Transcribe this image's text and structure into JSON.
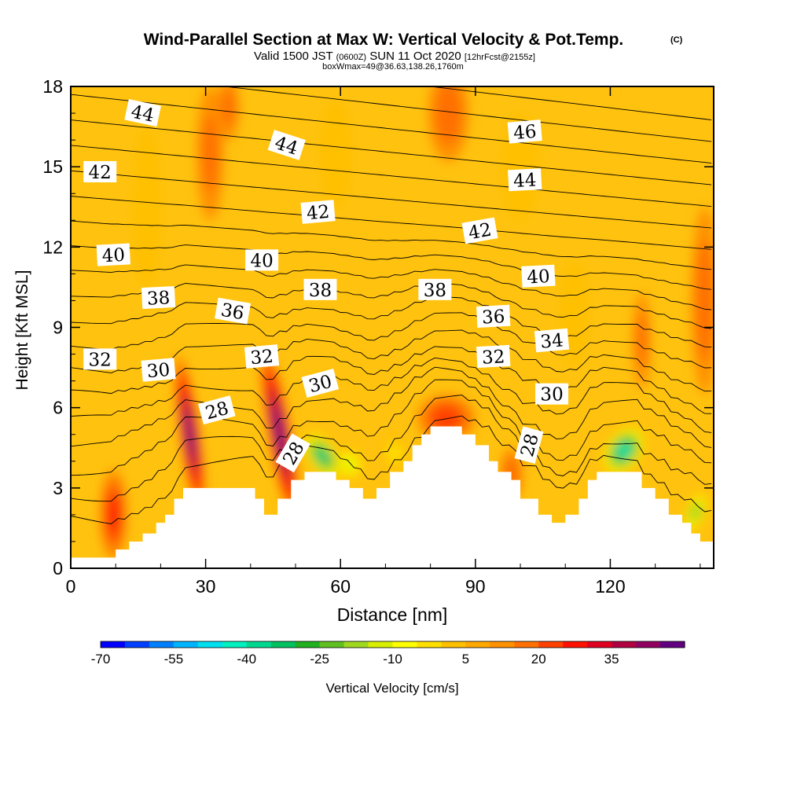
{
  "chart_data": {
    "type": "heatmap",
    "title": "Wind-Parallel Section at Max W: Vertical Velocity & Pot.Temp.",
    "title_mark": "(C)",
    "subtitle": {
      "valid": "Valid 1500 JST",
      "utc": "(0600Z)",
      "date": "SUN 11 Oct 2020",
      "fcst": "[12hrFcst@2155z]",
      "box": "boxWmax=49@36.63,138.26,1760m"
    },
    "xlabel": "Distance [nm]",
    "ylabel": "Height [Kft MSL]",
    "xlim": [
      0,
      143
    ],
    "ylim": [
      0,
      18
    ],
    "x_ticks": [
      0,
      30,
      60,
      90,
      120
    ],
    "y_ticks": [
      0,
      3,
      6,
      9,
      12,
      15,
      18
    ],
    "colorbar": {
      "label": "Vertical Velocity [cm/s]",
      "tick_labels": [
        "-70",
        "-55",
        "-40",
        "-25",
        "-10",
        "5",
        "20",
        "35"
      ],
      "colors": [
        "#0000ff",
        "#0040ff",
        "#0080ff",
        "#00b4ff",
        "#00e0f0",
        "#00f0c0",
        "#00d890",
        "#00c060",
        "#20b020",
        "#60c020",
        "#a0d820",
        "#d8f000",
        "#ffff00",
        "#ffe000",
        "#ffc000",
        "#ffa800",
        "#ff9000",
        "#ff7000",
        "#ff4000",
        "#ff1000",
        "#e00020",
        "#b00040",
        "#900060",
        "#600080"
      ]
    },
    "terrain_kft": [
      [
        0,
        0.4
      ],
      [
        10,
        0.4
      ],
      [
        10,
        0.7
      ],
      [
        13,
        0.7
      ],
      [
        13,
        1.0
      ],
      [
        16,
        1.0
      ],
      [
        16,
        1.3
      ],
      [
        19,
        1.3
      ],
      [
        19,
        1.7
      ],
      [
        21,
        1.7
      ],
      [
        21,
        2.0
      ],
      [
        23,
        2.0
      ],
      [
        23,
        2.6
      ],
      [
        25,
        2.6
      ],
      [
        25,
        3.0
      ],
      [
        41,
        3.0
      ],
      [
        41,
        2.6
      ],
      [
        43,
        2.6
      ],
      [
        43,
        2.0
      ],
      [
        46,
        2.0
      ],
      [
        46,
        2.6
      ],
      [
        49,
        2.6
      ],
      [
        49,
        3.3
      ],
      [
        52,
        3.3
      ],
      [
        52,
        3.6
      ],
      [
        59,
        3.6
      ],
      [
        59,
        3.3
      ],
      [
        62,
        3.3
      ],
      [
        62,
        3.0
      ],
      [
        65,
        3.0
      ],
      [
        65,
        2.6
      ],
      [
        68,
        2.6
      ],
      [
        68,
        3.0
      ],
      [
        71,
        3.0
      ],
      [
        71,
        3.6
      ],
      [
        74,
        3.6
      ],
      [
        74,
        4.0
      ],
      [
        76,
        4.0
      ],
      [
        76,
        4.6
      ],
      [
        78,
        4.6
      ],
      [
        78,
        5.0
      ],
      [
        80,
        5.0
      ],
      [
        80,
        5.3
      ],
      [
        87,
        5.3
      ],
      [
        87,
        5.0
      ],
      [
        90,
        5.0
      ],
      [
        90,
        4.6
      ],
      [
        93,
        4.6
      ],
      [
        93,
        4.0
      ],
      [
        95,
        4.0
      ],
      [
        95,
        3.6
      ],
      [
        98,
        3.6
      ],
      [
        98,
        3.3
      ],
      [
        100,
        3.3
      ],
      [
        100,
        2.6
      ],
      [
        104,
        2.6
      ],
      [
        104,
        2.0
      ],
      [
        107,
        2.0
      ],
      [
        107,
        1.7
      ],
      [
        110,
        1.7
      ],
      [
        110,
        2.0
      ],
      [
        113,
        2.0
      ],
      [
        113,
        2.6
      ],
      [
        115,
        2.6
      ],
      [
        115,
        3.3
      ],
      [
        117,
        3.3
      ],
      [
        117,
        3.6
      ],
      [
        127,
        3.6
      ],
      [
        127,
        3.0
      ],
      [
        130,
        3.0
      ],
      [
        130,
        2.6
      ],
      [
        133,
        2.6
      ],
      [
        133,
        2.0
      ],
      [
        136,
        2.0
      ],
      [
        136,
        1.7
      ],
      [
        138,
        1.7
      ],
      [
        138,
        1.3
      ],
      [
        140,
        1.3
      ],
      [
        140,
        1.0
      ],
      [
        143,
        1.0
      ],
      [
        143,
        0
      ]
    ],
    "theta_contours": [
      28,
      30,
      32,
      34,
      36,
      38,
      40,
      42,
      44,
      46
    ],
    "theta_labels": [
      {
        "text": "44",
        "x": 16,
        "y": 17.0,
        "rot": 12
      },
      {
        "text": "44",
        "x": 48,
        "y": 15.8,
        "rot": 18
      },
      {
        "text": "46",
        "x": 101,
        "y": 16.3,
        "rot": -5
      },
      {
        "text": "42",
        "x": 6.5,
        "y": 14.8,
        "rot": 0
      },
      {
        "text": "44",
        "x": 101,
        "y": 14.5,
        "rot": -3
      },
      {
        "text": "42",
        "x": 55,
        "y": 13.3,
        "rot": -5
      },
      {
        "text": "42",
        "x": 91,
        "y": 12.6,
        "rot": -10
      },
      {
        "text": "40",
        "x": 9.5,
        "y": 11.7,
        "rot": -3
      },
      {
        "text": "40",
        "x": 42.5,
        "y": 11.5,
        "rot": 0
      },
      {
        "text": "40",
        "x": 104,
        "y": 10.9,
        "rot": -3
      },
      {
        "text": "38",
        "x": 19.5,
        "y": 10.1,
        "rot": -3
      },
      {
        "text": "36",
        "x": 36,
        "y": 9.6,
        "rot": 10
      },
      {
        "text": "38",
        "x": 55.5,
        "y": 10.4,
        "rot": 0
      },
      {
        "text": "38",
        "x": 81,
        "y": 10.4,
        "rot": 0
      },
      {
        "text": "36",
        "x": 94,
        "y": 9.4,
        "rot": -3
      },
      {
        "text": "34",
        "x": 107,
        "y": 8.5,
        "rot": -5
      },
      {
        "text": "32",
        "x": 6.5,
        "y": 7.8,
        "rot": 0
      },
      {
        "text": "30",
        "x": 19.5,
        "y": 7.4,
        "rot": -5
      },
      {
        "text": "32",
        "x": 42.5,
        "y": 7.9,
        "rot": -5
      },
      {
        "text": "30",
        "x": 55.5,
        "y": 6.9,
        "rot": -15
      },
      {
        "text": "32",
        "x": 94,
        "y": 7.9,
        "rot": -3
      },
      {
        "text": "28",
        "x": 32.5,
        "y": 5.9,
        "rot": -15
      },
      {
        "text": "30",
        "x": 107,
        "y": 6.5,
        "rot": 0
      },
      {
        "text": "28",
        "x": 49.5,
        "y": 4.3,
        "rot": -60
      },
      {
        "text": "28",
        "x": 102,
        "y": 4.6,
        "rot": -75
      }
    ],
    "w_features": [
      {
        "x": 26.5,
        "y": 5.0,
        "rx": 2.2,
        "ry": 3.0,
        "w": 40,
        "tilt": -8
      },
      {
        "x": 46.5,
        "y": 5.0,
        "rx": 2.5,
        "ry": 3.3,
        "w": 42,
        "tilt": -10
      },
      {
        "x": 9.5,
        "y": 2.0,
        "rx": 3.0,
        "ry": 1.7,
        "w": 20,
        "tilt": 0
      },
      {
        "x": 83.5,
        "y": 5.6,
        "rx": 6.5,
        "ry": 0.9,
        "w": 18,
        "tilt": 0
      },
      {
        "x": 98,
        "y": 3.5,
        "rx": 2.5,
        "ry": 1.0,
        "w": 14,
        "tilt": 0
      },
      {
        "x": 31,
        "y": 15.5,
        "rx": 3.0,
        "ry": 2.5,
        "w": 10,
        "tilt": 0
      },
      {
        "x": 35,
        "y": 17.2,
        "rx": 2.5,
        "ry": 1.2,
        "w": 10,
        "tilt": 0
      },
      {
        "x": 84,
        "y": 17.0,
        "rx": 4.5,
        "ry": 1.8,
        "w": 12,
        "tilt": 0
      },
      {
        "x": 141,
        "y": 10.0,
        "rx": 3.0,
        "ry": 3.5,
        "w": 12,
        "tilt": 0
      },
      {
        "x": 127,
        "y": 8.5,
        "rx": 2.0,
        "ry": 1.8,
        "w": 10,
        "tilt": 0
      },
      {
        "x": 56,
        "y": 4.2,
        "rx": 3.2,
        "ry": 1.0,
        "w": -45,
        "tilt": -35
      },
      {
        "x": 62,
        "y": 3.9,
        "rx": 3.0,
        "ry": 0.6,
        "w": -22,
        "tilt": -15
      },
      {
        "x": 123,
        "y": 4.4,
        "rx": 4.0,
        "ry": 1.0,
        "w": -50,
        "tilt": 35
      },
      {
        "x": 139,
        "y": 2.1,
        "rx": 2.2,
        "ry": 0.8,
        "w": -30,
        "tilt": 20
      },
      {
        "x": 72,
        "y": 4.3,
        "rx": 2.5,
        "ry": 0.6,
        "w": -12,
        "tilt": -10
      },
      {
        "x": 17,
        "y": 13.5,
        "rx": 3.0,
        "ry": 3.0,
        "w": -5,
        "tilt": 0
      },
      {
        "x": 59,
        "y": 15.5,
        "rx": 3.5,
        "ry": 2.0,
        "w": -6,
        "tilt": 0
      },
      {
        "x": 100,
        "y": 15.0,
        "rx": 4.0,
        "ry": 2.0,
        "w": -7,
        "tilt": 0
      },
      {
        "x": 112,
        "y": 9.5,
        "rx": 3.0,
        "ry": 2.0,
        "w": -5,
        "tilt": 0
      }
    ]
  }
}
